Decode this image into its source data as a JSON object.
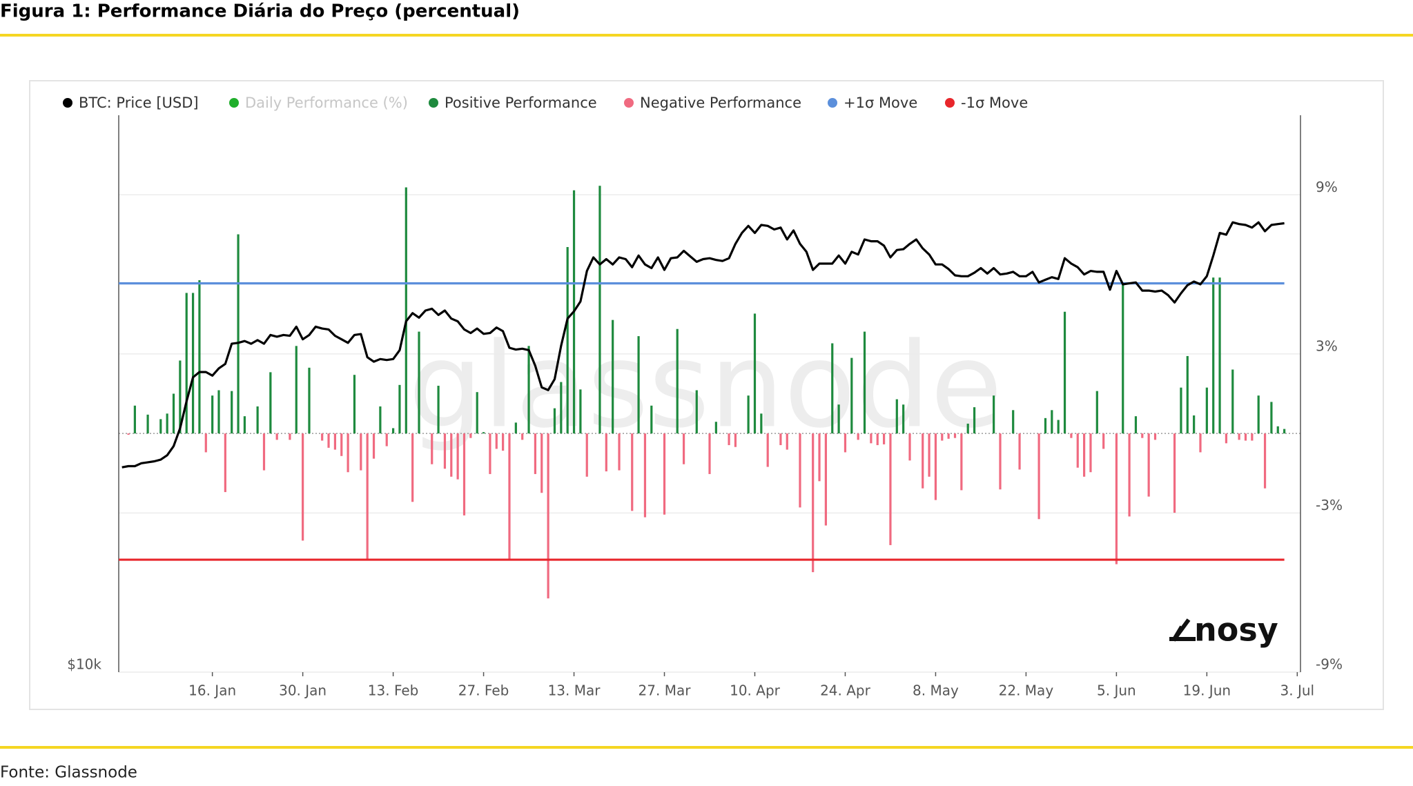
{
  "chart_data": {
    "type": "combo",
    "title": "Figura 1: Performance Diária do Preço (percentual)",
    "source": "Fonte: Glassnode",
    "watermark": "glassnode",
    "logo": "nosy",
    "categories": [
      null,
      null,
      null,
      null,
      null,
      null,
      null,
      null,
      null,
      null,
      null,
      null,
      null,
      null,
      "16. Jan",
      null,
      null,
      null,
      null,
      null,
      null,
      null,
      null,
      null,
      null,
      null,
      null,
      null,
      "30. Jan",
      null,
      null,
      null,
      null,
      null,
      null,
      null,
      null,
      null,
      null,
      null,
      null,
      null,
      "13. Feb",
      null,
      null,
      null,
      null,
      null,
      null,
      null,
      null,
      null,
      null,
      null,
      null,
      null,
      "27. Feb",
      null,
      null,
      null,
      null,
      null,
      null,
      null,
      null,
      null,
      null,
      null,
      null,
      null,
      "13. Mar",
      null,
      null,
      null,
      null,
      null,
      null,
      null,
      null,
      null,
      null,
      null,
      null,
      null,
      "27. Mar",
      null,
      null,
      null,
      null,
      null,
      null,
      null,
      null,
      null,
      null,
      null,
      null,
      null,
      "10. Apr",
      null,
      null,
      null,
      null,
      null,
      null,
      null,
      null,
      null,
      null,
      null,
      null,
      null,
      "24. Apr",
      null,
      null,
      null,
      null,
      null,
      null,
      null,
      null,
      null,
      null,
      null,
      null,
      null,
      "8. May",
      null,
      null,
      null,
      null,
      null,
      null,
      null,
      null,
      null,
      null,
      null,
      null,
      null,
      "22. May",
      null,
      null,
      null,
      null,
      null,
      null,
      null,
      null,
      null,
      null,
      null,
      null,
      null,
      "5. Jun",
      null,
      null,
      null,
      null,
      null,
      null,
      null,
      null,
      null,
      null,
      null,
      null,
      null,
      "19. Jun",
      null,
      null,
      null,
      null,
      null,
      null,
      null,
      null,
      null,
      null,
      null,
      null,
      null,
      "3. Jul"
    ],
    "ylim": [
      10000,
      40000
    ],
    "ylog": true,
    "yticks": [
      {
        "value": 10000,
        "label": "$10k"
      }
    ],
    "y2lim": [
      -9,
      12
    ],
    "y2ticks": [
      {
        "value": -9,
        "label": "-9%"
      },
      {
        "value": -3,
        "label": "-3%"
      },
      {
        "value": 3,
        "label": "3%"
      },
      {
        "value": 9,
        "label": "9%"
      }
    ],
    "grid": true,
    "series": [
      {
        "name": "BTC: Price [USD]",
        "color": "#000000",
        "type": "line",
        "axis": "y",
        "values": [
          16650,
          16700,
          16700,
          16820,
          16860,
          16900,
          16970,
          17160,
          17550,
          18350,
          19620,
          20830,
          21110,
          21110,
          20920,
          21300,
          21540,
          22650,
          22700,
          22800,
          22650,
          22850,
          22650,
          23150,
          23050,
          23150,
          23100,
          23630,
          22900,
          23150,
          23630,
          23520,
          23470,
          23100,
          22900,
          22700,
          23150,
          23200,
          21900,
          21660,
          21800,
          21750,
          21800,
          22290,
          23950,
          24440,
          24170,
          24600,
          24710,
          24330,
          24600,
          24110,
          23950,
          23470,
          23260,
          23520,
          23210,
          23260,
          23580,
          23370,
          22420,
          22320,
          22370,
          22290,
          21440,
          20320,
          20180,
          20740,
          22520,
          24110,
          24550,
          25160,
          27150,
          28080,
          27590,
          27960,
          27590,
          28080,
          27960,
          27400,
          28210,
          27590,
          27340,
          28080,
          27220,
          28020,
          28080,
          28540,
          28150,
          27770,
          27960,
          28020,
          27900,
          27830,
          28020,
          29040,
          29840,
          30370,
          29840,
          30440,
          30370,
          30100,
          30240,
          29360,
          30030,
          29040,
          28470,
          27220,
          27650,
          27650,
          27650,
          28210,
          27650,
          28470,
          28280,
          29360,
          29230,
          29230,
          28910,
          28080,
          28600,
          28660,
          29040,
          29360,
          28720,
          28280,
          27590,
          27590,
          27280,
          26850,
          26790,
          26790,
          27030,
          27340,
          26970,
          27340,
          26910,
          26970,
          27090,
          26790,
          26790,
          27090,
          26380,
          26560,
          26730,
          26610,
          28020,
          27650,
          27400,
          26910,
          27150,
          27090,
          27090,
          25910,
          27150,
          26260,
          26320,
          26380,
          25850,
          25850,
          25790,
          25850,
          25560,
          25100,
          25680,
          26200,
          26440,
          26260,
          26790,
          28210,
          29840,
          29710,
          30640,
          30510,
          30440,
          30240,
          30640,
          29970,
          30440,
          30510,
          30570,
          null,
          null
        ]
      },
      {
        "name": "Daily Performance (%)",
        "color": "#1fae2b",
        "type": "bar",
        "axis": "y2",
        "hidden": true,
        "values": [
          0,
          -0.05,
          1.05,
          0,
          0.71,
          0,
          0.54,
          0.75,
          1.5,
          2.75,
          5.3,
          5.3,
          5.78,
          -0.71,
          1.43,
          1.63,
          -2.21,
          1.6,
          7.51,
          0.65,
          0,
          1.02,
          -1.39,
          2.31,
          -0.24,
          0,
          -0.24,
          3.3,
          -4.04,
          2.48,
          0,
          -0.27,
          -0.54,
          -0.61,
          -0.85,
          -1.46,
          2.21,
          -1.39,
          -4.76,
          -0.95,
          1.02,
          -0.48,
          0.2,
          1.83,
          9.28,
          -2.58,
          3.84,
          0,
          -1.16,
          1.8,
          -1.33,
          -1.63,
          -1.73,
          -3.09,
          -0.17,
          1.56,
          0.05,
          -1.53,
          -0.58,
          -0.65,
          -4.72,
          0.41,
          -0.24,
          3.3,
          -1.53,
          -2.24,
          -6.22,
          0.95,
          1.94,
          7.03,
          9.17,
          1.66,
          -1.63,
          0,
          9.34,
          -1.43,
          4.28,
          -1.39,
          0,
          -2.92,
          3.67,
          -3.16,
          1.05,
          0,
          -3.06,
          0,
          3.94,
          -1.16,
          0,
          1.63,
          0,
          -1.53,
          0.44,
          0,
          -0.44,
          -0.51,
          0,
          1.43,
          4.52,
          0.75,
          -1.26,
          0,
          -0.44,
          -0.61,
          0,
          -2.79,
          0,
          -5.23,
          -1.8,
          -3.47,
          3.4,
          1.09,
          -0.71,
          2.85,
          -0.24,
          3.84,
          -0.37,
          -0.44,
          -0.41,
          -4.21,
          1.29,
          1.09,
          -1.02,
          0,
          -2.07,
          -1.63,
          -2.51,
          -0.27,
          -0.2,
          -0.17,
          -2.14,
          0.37,
          0.99,
          0,
          0,
          1.43,
          -2.11,
          0,
          0.88,
          -1.36,
          0,
          0,
          -3.23,
          0.58,
          0.88,
          0.51,
          4.59,
          -0.17,
          -1.29,
          -1.63,
          -1.46,
          1.6,
          -0.58,
          0,
          -4.93,
          5.67,
          -3.13,
          0.65,
          -0.17,
          -2.38,
          -0.24,
          0,
          0,
          -2.99,
          1.73,
          2.92,
          0.68,
          -0.71,
          1.73,
          5.88,
          5.88,
          -0.37,
          2.41,
          -0.24,
          -0.27,
          -0.27,
          1.43,
          -2.07,
          1.19,
          0.27,
          0.17,
          null,
          null
        ]
      },
      {
        "name": "Positive Performance",
        "color": "#1e8a3e",
        "type": "sign",
        "sign": "positive"
      },
      {
        "name": "Negative Performance",
        "color": "#f06a80",
        "type": "sign",
        "sign": "negative"
      },
      {
        "name": "+1σ Move",
        "color": "#5b8fdb",
        "type": "hline",
        "axis": "y2",
        "value": 5.66
      },
      {
        "name": "-1σ Move",
        "color": "#e8262b",
        "type": "hline",
        "axis": "y2",
        "value": -4.76
      }
    ]
  }
}
